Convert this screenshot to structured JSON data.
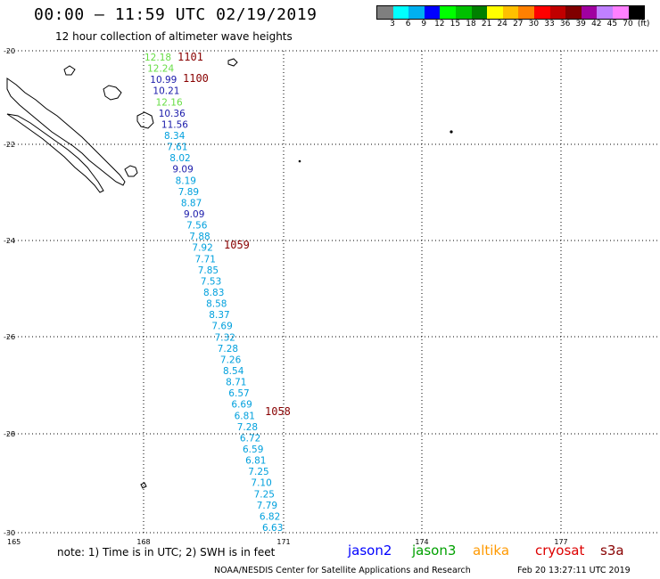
{
  "header": {
    "title": "00:00 – 11:59 UTC 02/19/2019",
    "subtitle": "12 hour collection of altimeter wave heights"
  },
  "colorbar": {
    "labels": [
      "3",
      "6",
      "9",
      "12",
      "15",
      "18",
      "21",
      "24",
      "27",
      "30",
      "33",
      "36",
      "39",
      "42",
      "45",
      "70",
      "(ft)"
    ],
    "colors": [
      "#7f7f7f",
      "#00ffff",
      "#00b0f0",
      "#0000ff",
      "#00ff00",
      "#00c000",
      "#008000",
      "#ffff00",
      "#ffc000",
      "#ff8000",
      "#ff0000",
      "#c00000",
      "#800000",
      "#a000a0",
      "#c080ff",
      "#ff80ff",
      "#000000"
    ]
  },
  "axes": {
    "x_ticks": [
      "165",
      "168",
      "171",
      "174",
      "177"
    ],
    "y_ticks": [
      "-20",
      "-22",
      "-24",
      "-26",
      "-28",
      "-30"
    ]
  },
  "time_labels": [
    "1101",
    "1100",
    "1059",
    "1058"
  ],
  "wave_heights": [
    {
      "value": "12.18",
      "color": "#66dd44"
    },
    {
      "value": "12.24",
      "color": "#66dd44"
    },
    {
      "value": "10.99",
      "color": "#1a1aaa"
    },
    {
      "value": "10.21",
      "color": "#1a1aaa"
    },
    {
      "value": "12.16",
      "color": "#66dd44"
    },
    {
      "value": "10.36",
      "color": "#1a1aaa"
    },
    {
      "value": "11.56",
      "color": "#1a1aaa"
    },
    {
      "value": "8.34",
      "color": "#00a0dd"
    },
    {
      "value": "7.61",
      "color": "#00a0dd"
    },
    {
      "value": "8.02",
      "color": "#00a0dd"
    },
    {
      "value": "9.09",
      "color": "#1a1aaa"
    },
    {
      "value": "8.19",
      "color": "#00a0dd"
    },
    {
      "value": "7.89",
      "color": "#00a0dd"
    },
    {
      "value": "8.87",
      "color": "#00a0dd"
    },
    {
      "value": "9.09",
      "color": "#1a1aaa"
    },
    {
      "value": "7.56",
      "color": "#00a0dd"
    },
    {
      "value": "7.88",
      "color": "#00a0dd"
    },
    {
      "value": "7.92",
      "color": "#00a0dd"
    },
    {
      "value": "7.71",
      "color": "#00a0dd"
    },
    {
      "value": "7.85",
      "color": "#00a0dd"
    },
    {
      "value": "7.53",
      "color": "#00a0dd"
    },
    {
      "value": "8.83",
      "color": "#00a0dd"
    },
    {
      "value": "8.58",
      "color": "#00a0dd"
    },
    {
      "value": "8.37",
      "color": "#00a0dd"
    },
    {
      "value": "7.69",
      "color": "#00a0dd"
    },
    {
      "value": "7.32",
      "color": "#00a0dd"
    },
    {
      "value": "7.28",
      "color": "#00a0dd"
    },
    {
      "value": "7.26",
      "color": "#00a0dd"
    },
    {
      "value": "8.54",
      "color": "#00a0dd"
    },
    {
      "value": "8.71",
      "color": "#00a0dd"
    },
    {
      "value": "6.57",
      "color": "#00a0dd"
    },
    {
      "value": "6.69",
      "color": "#00a0dd"
    },
    {
      "value": "6.81",
      "color": "#00a0dd"
    },
    {
      "value": "7.28",
      "color": "#00a0dd"
    },
    {
      "value": "6.72",
      "color": "#00a0dd"
    },
    {
      "value": "6.59",
      "color": "#00a0dd"
    },
    {
      "value": "6.81",
      "color": "#00a0dd"
    },
    {
      "value": "7.25",
      "color": "#00a0dd"
    },
    {
      "value": "7.10",
      "color": "#00a0dd"
    },
    {
      "value": "7.25",
      "color": "#00a0dd"
    },
    {
      "value": "7.79",
      "color": "#00a0dd"
    },
    {
      "value": "6.82",
      "color": "#00a0dd"
    },
    {
      "value": "6.63",
      "color": "#00a0dd"
    }
  ],
  "footer": {
    "note": "note:  1) Time is in UTC;  2) SWH is in feet",
    "legend": [
      {
        "name": "jason2",
        "color": "#0000ff"
      },
      {
        "name": "jason3",
        "color": "#00a000"
      },
      {
        "name": "altika",
        "color": "#ff9900"
      },
      {
        "name": "cryosat",
        "color": "#dd0000"
      },
      {
        "name": "s3a",
        "color": "#880000"
      }
    ],
    "credit": "NOAA/NESDIS Center for Satellite Applications and Research",
    "timestamp": "Feb 20 13:27:11 UTC 2019"
  },
  "colors": {
    "time_label": "#880000",
    "grid": "#000000",
    "coast": "#000000"
  }
}
